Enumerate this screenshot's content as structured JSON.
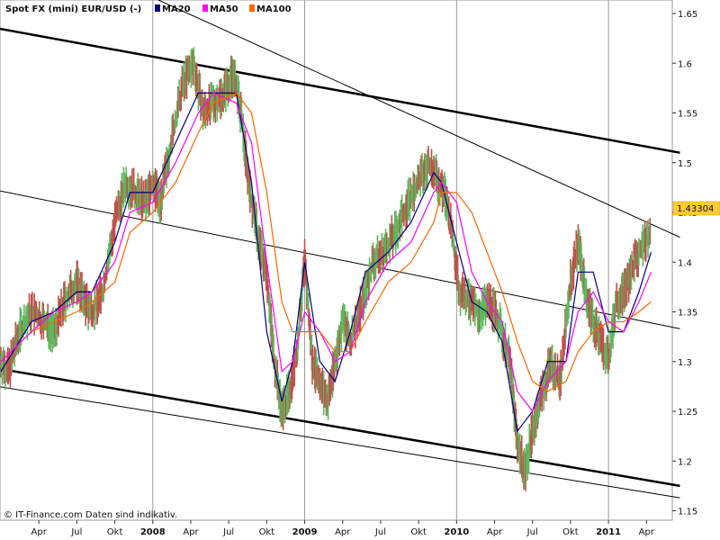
{
  "chart_data": {
    "type": "line",
    "title": "Spot FX (mini) EUR/USD (-)",
    "xlabel": "",
    "ylabel": "",
    "ylim": [
      1.15,
      1.65
    ],
    "grid": "vertical year lines",
    "legend_placement": "top-left",
    "x_ticks": [
      "Apr",
      "Jul",
      "Okt",
      "2008",
      "Apr",
      "Jul",
      "Okt",
      "2009",
      "Apr",
      "Jul",
      "Okt",
      "2010",
      "Apr",
      "Jul",
      "Okt",
      "2011",
      "Apr"
    ],
    "x_tick_months": [
      2007.25,
      2007.5,
      2007.75,
      2008.0,
      2008.25,
      2008.5,
      2008.75,
      2009.0,
      2009.25,
      2009.5,
      2009.75,
      2010.0,
      2010.25,
      2010.5,
      2010.75,
      2011.0,
      2011.25
    ],
    "year_ticks": [
      "2008",
      "2009",
      "2010",
      "2011"
    ],
    "y_ticks": [
      1.15,
      1.2,
      1.25,
      1.3,
      1.35,
      1.4,
      1.45,
      1.5,
      1.55,
      1.6,
      1.65
    ],
    "last_price": "1.43304",
    "x": [
      2007.0,
      2007.2,
      2007.35,
      2007.5,
      2007.6,
      2007.75,
      2007.85,
      2008.0,
      2008.15,
      2008.3,
      2008.4,
      2008.55,
      2008.65,
      2008.75,
      2008.85,
      2008.92,
      2009.0,
      2009.1,
      2009.2,
      2009.3,
      2009.4,
      2009.55,
      2009.7,
      2009.85,
      2009.9,
      2010.0,
      2010.1,
      2010.2,
      2010.3,
      2010.4,
      2010.5,
      2010.6,
      2010.72,
      2010.8,
      2010.9,
      2011.0,
      2011.1,
      2011.2,
      2011.28
    ],
    "series": [
      {
        "name": "MA20",
        "color": "#000080",
        "values": [
          1.29,
          1.34,
          1.35,
          1.37,
          1.37,
          1.42,
          1.47,
          1.47,
          1.52,
          1.57,
          1.57,
          1.57,
          1.48,
          1.33,
          1.26,
          1.3,
          1.4,
          1.3,
          1.28,
          1.33,
          1.39,
          1.41,
          1.44,
          1.49,
          1.48,
          1.42,
          1.36,
          1.35,
          1.32,
          1.23,
          1.25,
          1.3,
          1.3,
          1.39,
          1.39,
          1.33,
          1.33,
          1.37,
          1.41
        ]
      },
      {
        "name": "MA50",
        "color": "#ff00ff",
        "values": [
          1.3,
          1.33,
          1.35,
          1.36,
          1.37,
          1.4,
          1.45,
          1.46,
          1.5,
          1.55,
          1.57,
          1.56,
          1.52,
          1.4,
          1.29,
          1.3,
          1.35,
          1.33,
          1.3,
          1.31,
          1.36,
          1.4,
          1.42,
          1.47,
          1.48,
          1.46,
          1.39,
          1.36,
          1.34,
          1.27,
          1.25,
          1.28,
          1.3,
          1.35,
          1.37,
          1.34,
          1.33,
          1.36,
          1.39
        ]
      },
      {
        "name": "MA100",
        "color": "#ff6600",
        "values": [
          null,
          1.33,
          1.34,
          1.35,
          1.36,
          1.38,
          1.43,
          1.45,
          1.48,
          1.53,
          1.56,
          1.57,
          1.55,
          1.47,
          1.36,
          1.33,
          1.33,
          1.33,
          1.31,
          1.31,
          1.34,
          1.38,
          1.4,
          1.44,
          1.47,
          1.47,
          1.45,
          1.41,
          1.37,
          1.32,
          1.28,
          1.27,
          1.28,
          1.31,
          1.33,
          1.34,
          1.34,
          1.35,
          1.36
        ]
      }
    ],
    "price_series": {
      "x": [
        2007.0,
        2007.05,
        2007.12,
        2007.2,
        2007.28,
        2007.35,
        2007.42,
        2007.5,
        2007.55,
        2007.6,
        2007.67,
        2007.75,
        2007.82,
        2007.88,
        2007.95,
        2008.0,
        2008.05,
        2008.12,
        2008.2,
        2008.27,
        2008.33,
        2008.4,
        2008.47,
        2008.53,
        2008.58,
        2008.64,
        2008.7,
        2008.75,
        2008.8,
        2008.85,
        2008.9,
        2008.95,
        2009.0,
        2009.05,
        2009.1,
        2009.15,
        2009.2,
        2009.25,
        2009.3,
        2009.38,
        2009.45,
        2009.52,
        2009.6,
        2009.68,
        2009.75,
        2009.82,
        2009.88,
        2009.92,
        2009.97,
        2010.02,
        2010.08,
        2010.15,
        2010.22,
        2010.28,
        2010.35,
        2010.4,
        2010.45,
        2010.5,
        2010.55,
        2010.62,
        2010.68,
        2010.75,
        2010.8,
        2010.85,
        2010.9,
        2010.95,
        2011.0,
        2011.05,
        2011.1,
        2011.15,
        2011.2,
        2011.28
      ],
      "values": [
        1.3,
        1.29,
        1.33,
        1.35,
        1.34,
        1.33,
        1.36,
        1.38,
        1.36,
        1.35,
        1.37,
        1.44,
        1.48,
        1.47,
        1.46,
        1.48,
        1.46,
        1.52,
        1.58,
        1.6,
        1.55,
        1.56,
        1.57,
        1.59,
        1.55,
        1.47,
        1.42,
        1.39,
        1.3,
        1.25,
        1.27,
        1.31,
        1.4,
        1.3,
        1.28,
        1.26,
        1.3,
        1.34,
        1.32,
        1.36,
        1.4,
        1.41,
        1.43,
        1.46,
        1.48,
        1.5,
        1.48,
        1.47,
        1.43,
        1.37,
        1.36,
        1.35,
        1.36,
        1.34,
        1.3,
        1.22,
        1.19,
        1.23,
        1.26,
        1.3,
        1.28,
        1.38,
        1.42,
        1.37,
        1.34,
        1.32,
        1.3,
        1.36,
        1.37,
        1.39,
        1.41,
        1.43
      ]
    },
    "trendlines": [
      {
        "weight": "bold",
        "x": [
          2006.98,
          2011.47
        ],
        "values": [
          1.635,
          1.51
        ]
      },
      {
        "weight": "bold",
        "x": [
          2006.98,
          2011.47
        ],
        "values": [
          1.293,
          1.175
        ]
      },
      {
        "weight": "thin",
        "x": [
          2006.98,
          2011.47
        ],
        "values": [
          1.472,
          1.333
        ]
      },
      {
        "weight": "thin",
        "x": [
          2006.98,
          2011.47
        ],
        "values": [
          1.275,
          1.163
        ]
      },
      {
        "weight": "thin",
        "x": [
          2007.8,
          2011.47
        ],
        "values": [
          1.68,
          1.425
        ]
      }
    ]
  },
  "legend": [
    {
      "label": "MA20",
      "color": "#000080"
    },
    {
      "label": "MA50",
      "color": "#ff00ff"
    },
    {
      "label": "MA100",
      "color": "#ff6600"
    }
  ],
  "footer": "© IT-Finance.com Daten sind indikativ."
}
